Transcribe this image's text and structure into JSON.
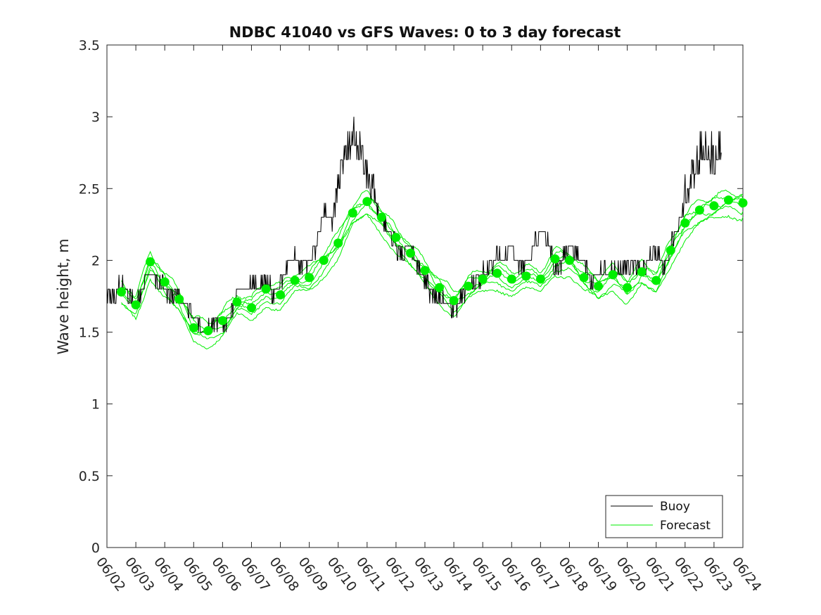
{
  "chart_data": {
    "type": "line",
    "title": "NDBC 41040 vs GFS Waves: 0 to 3 day forecast",
    "xlabel": "",
    "ylabel": "Wave height, m",
    "x_unit": "days (June)",
    "xlim": [
      2,
      24
    ],
    "ylim": [
      0,
      3.5
    ],
    "x_ticks": [
      2,
      3,
      4,
      5,
      6,
      7,
      8,
      9,
      10,
      11,
      12,
      13,
      14,
      15,
      16,
      17,
      18,
      19,
      20,
      21,
      22,
      23,
      24
    ],
    "x_tick_labels": [
      "06/02",
      "06/03",
      "06/04",
      "06/05",
      "06/06",
      "06/07",
      "06/08",
      "06/09",
      "06/10",
      "06/11",
      "06/12",
      "06/13",
      "06/14",
      "06/15",
      "06/16",
      "06/17",
      "06/18",
      "06/19",
      "06/20",
      "06/21",
      "06/22",
      "06/23",
      "06/24"
    ],
    "y_ticks": [
      0,
      0.5,
      1,
      1.5,
      2,
      2.5,
      3,
      3.5
    ],
    "y_tick_labels": [
      "0",
      "0.5",
      "1",
      "1.5",
      "2",
      "2.5",
      "3",
      "3.5"
    ],
    "grid": false,
    "legend_position": "bottom-right",
    "colors": {
      "buoy": "#000000",
      "forecast": "#00ee00",
      "axis": "#262626"
    },
    "series": [
      {
        "name": "Buoy",
        "x": [
          2.0,
          2.25,
          2.5,
          2.75,
          3.0,
          3.25,
          3.5,
          3.75,
          4.0,
          4.25,
          4.5,
          4.75,
          5.0,
          5.25,
          5.5,
          5.75,
          6.0,
          6.25,
          6.5,
          6.75,
          7.0,
          7.25,
          7.5,
          7.75,
          8.0,
          8.25,
          8.5,
          8.75,
          9.0,
          9.25,
          9.5,
          9.75,
          10.0,
          10.25,
          10.5,
          10.75,
          11.0,
          11.25,
          11.5,
          11.75,
          12.0,
          12.25,
          12.5,
          12.75,
          13.0,
          13.25,
          13.5,
          13.75,
          14.0,
          14.25,
          14.5,
          14.75,
          15.0,
          15.25,
          15.5,
          15.75,
          16.0,
          16.25,
          16.5,
          16.75,
          17.0,
          17.25,
          17.5,
          17.75,
          18.0,
          18.25,
          18.5,
          18.75,
          19.0,
          19.25,
          19.5,
          19.75,
          20.0,
          20.25,
          20.5,
          20.75,
          21.0,
          21.25,
          21.5,
          21.75,
          22.0,
          22.25,
          22.5,
          22.75,
          23.0,
          23.25
        ],
        "values": [
          1.8,
          1.75,
          1.85,
          1.75,
          1.7,
          1.8,
          1.95,
          1.85,
          1.8,
          1.75,
          1.72,
          1.7,
          1.6,
          1.5,
          1.5,
          1.6,
          1.55,
          1.6,
          1.8,
          1.8,
          1.85,
          1.8,
          1.9,
          1.75,
          1.85,
          2.0,
          2.05,
          1.95,
          2.0,
          2.1,
          2.35,
          2.25,
          2.5,
          2.7,
          2.9,
          2.75,
          2.6,
          2.45,
          2.3,
          2.2,
          2.1,
          2.05,
          2.1,
          1.95,
          1.85,
          1.75,
          1.75,
          1.7,
          1.65,
          1.75,
          1.8,
          1.85,
          1.9,
          1.95,
          2.05,
          2.0,
          2.1,
          1.95,
          2.0,
          2.1,
          2.2,
          2.15,
          1.9,
          2.0,
          2.1,
          2.05,
          2.0,
          1.85,
          1.9,
          1.95,
          1.9,
          1.95,
          1.95,
          2.0,
          1.9,
          2.0,
          2.05,
          1.95,
          2.1,
          2.25,
          2.45,
          2.6,
          2.75,
          2.8,
          2.7,
          2.75
        ]
      },
      {
        "name": "Forecast",
        "x": [
          2.5,
          3.0,
          3.5,
          4.0,
          4.5,
          5.0,
          5.5,
          6.0,
          6.5,
          7.0,
          7.5,
          8.0,
          8.5,
          9.0,
          9.5,
          10.0,
          10.5,
          11.0,
          11.5,
          12.0,
          12.5,
          13.0,
          13.5,
          14.0,
          14.5,
          15.0,
          15.5,
          16.0,
          16.5,
          17.0,
          17.5,
          18.0,
          18.5,
          19.0,
          19.5,
          20.0,
          20.5,
          21.0,
          21.5,
          22.0,
          22.5,
          23.0,
          23.5,
          24.0
        ],
        "values": [
          1.78,
          1.69,
          1.99,
          1.85,
          1.73,
          1.53,
          1.51,
          1.58,
          1.71,
          1.67,
          1.8,
          1.76,
          1.86,
          1.88,
          2.0,
          2.12,
          2.33,
          2.41,
          2.3,
          2.16,
          2.05,
          1.93,
          1.81,
          1.72,
          1.82,
          1.87,
          1.91,
          1.87,
          1.89,
          1.87,
          2.01,
          2.0,
          1.88,
          1.82,
          1.9,
          1.81,
          1.92,
          1.86,
          2.07,
          2.26,
          2.35,
          2.38,
          2.42,
          2.4
        ]
      }
    ]
  }
}
